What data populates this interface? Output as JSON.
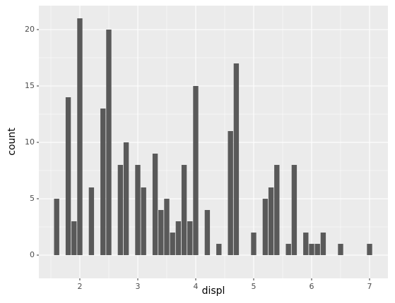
{
  "chart_data": {
    "type": "bar",
    "x": [
      1.6,
      1.8,
      1.9,
      2.0,
      2.2,
      2.4,
      2.5,
      2.7,
      2.8,
      3.0,
      3.1,
      3.3,
      3.4,
      3.5,
      3.6,
      3.7,
      3.8,
      3.9,
      4.0,
      4.2,
      4.4,
      4.6,
      4.7,
      5.0,
      5.2,
      5.3,
      5.4,
      5.6,
      5.7,
      5.9,
      6.0,
      6.1,
      6.2,
      6.5,
      7.0
    ],
    "values": [
      5,
      14,
      3,
      21,
      6,
      13,
      20,
      8,
      10,
      8,
      6,
      9,
      4,
      5,
      2,
      3,
      8,
      3,
      15,
      4,
      1,
      11,
      17,
      2,
      5,
      6,
      8,
      1,
      8,
      2,
      1,
      1,
      2,
      1,
      1
    ],
    "color": "#595959",
    "xlabel": "displ",
    "ylabel": "count",
    "xlim": [
      1.293,
      7.317
    ],
    "ylim": [
      -2.06,
      22.125
    ],
    "xticks": [
      2,
      3,
      4,
      5,
      6,
      7
    ],
    "yticks": [
      0,
      5,
      10,
      15,
      20
    ],
    "grid": true
  }
}
